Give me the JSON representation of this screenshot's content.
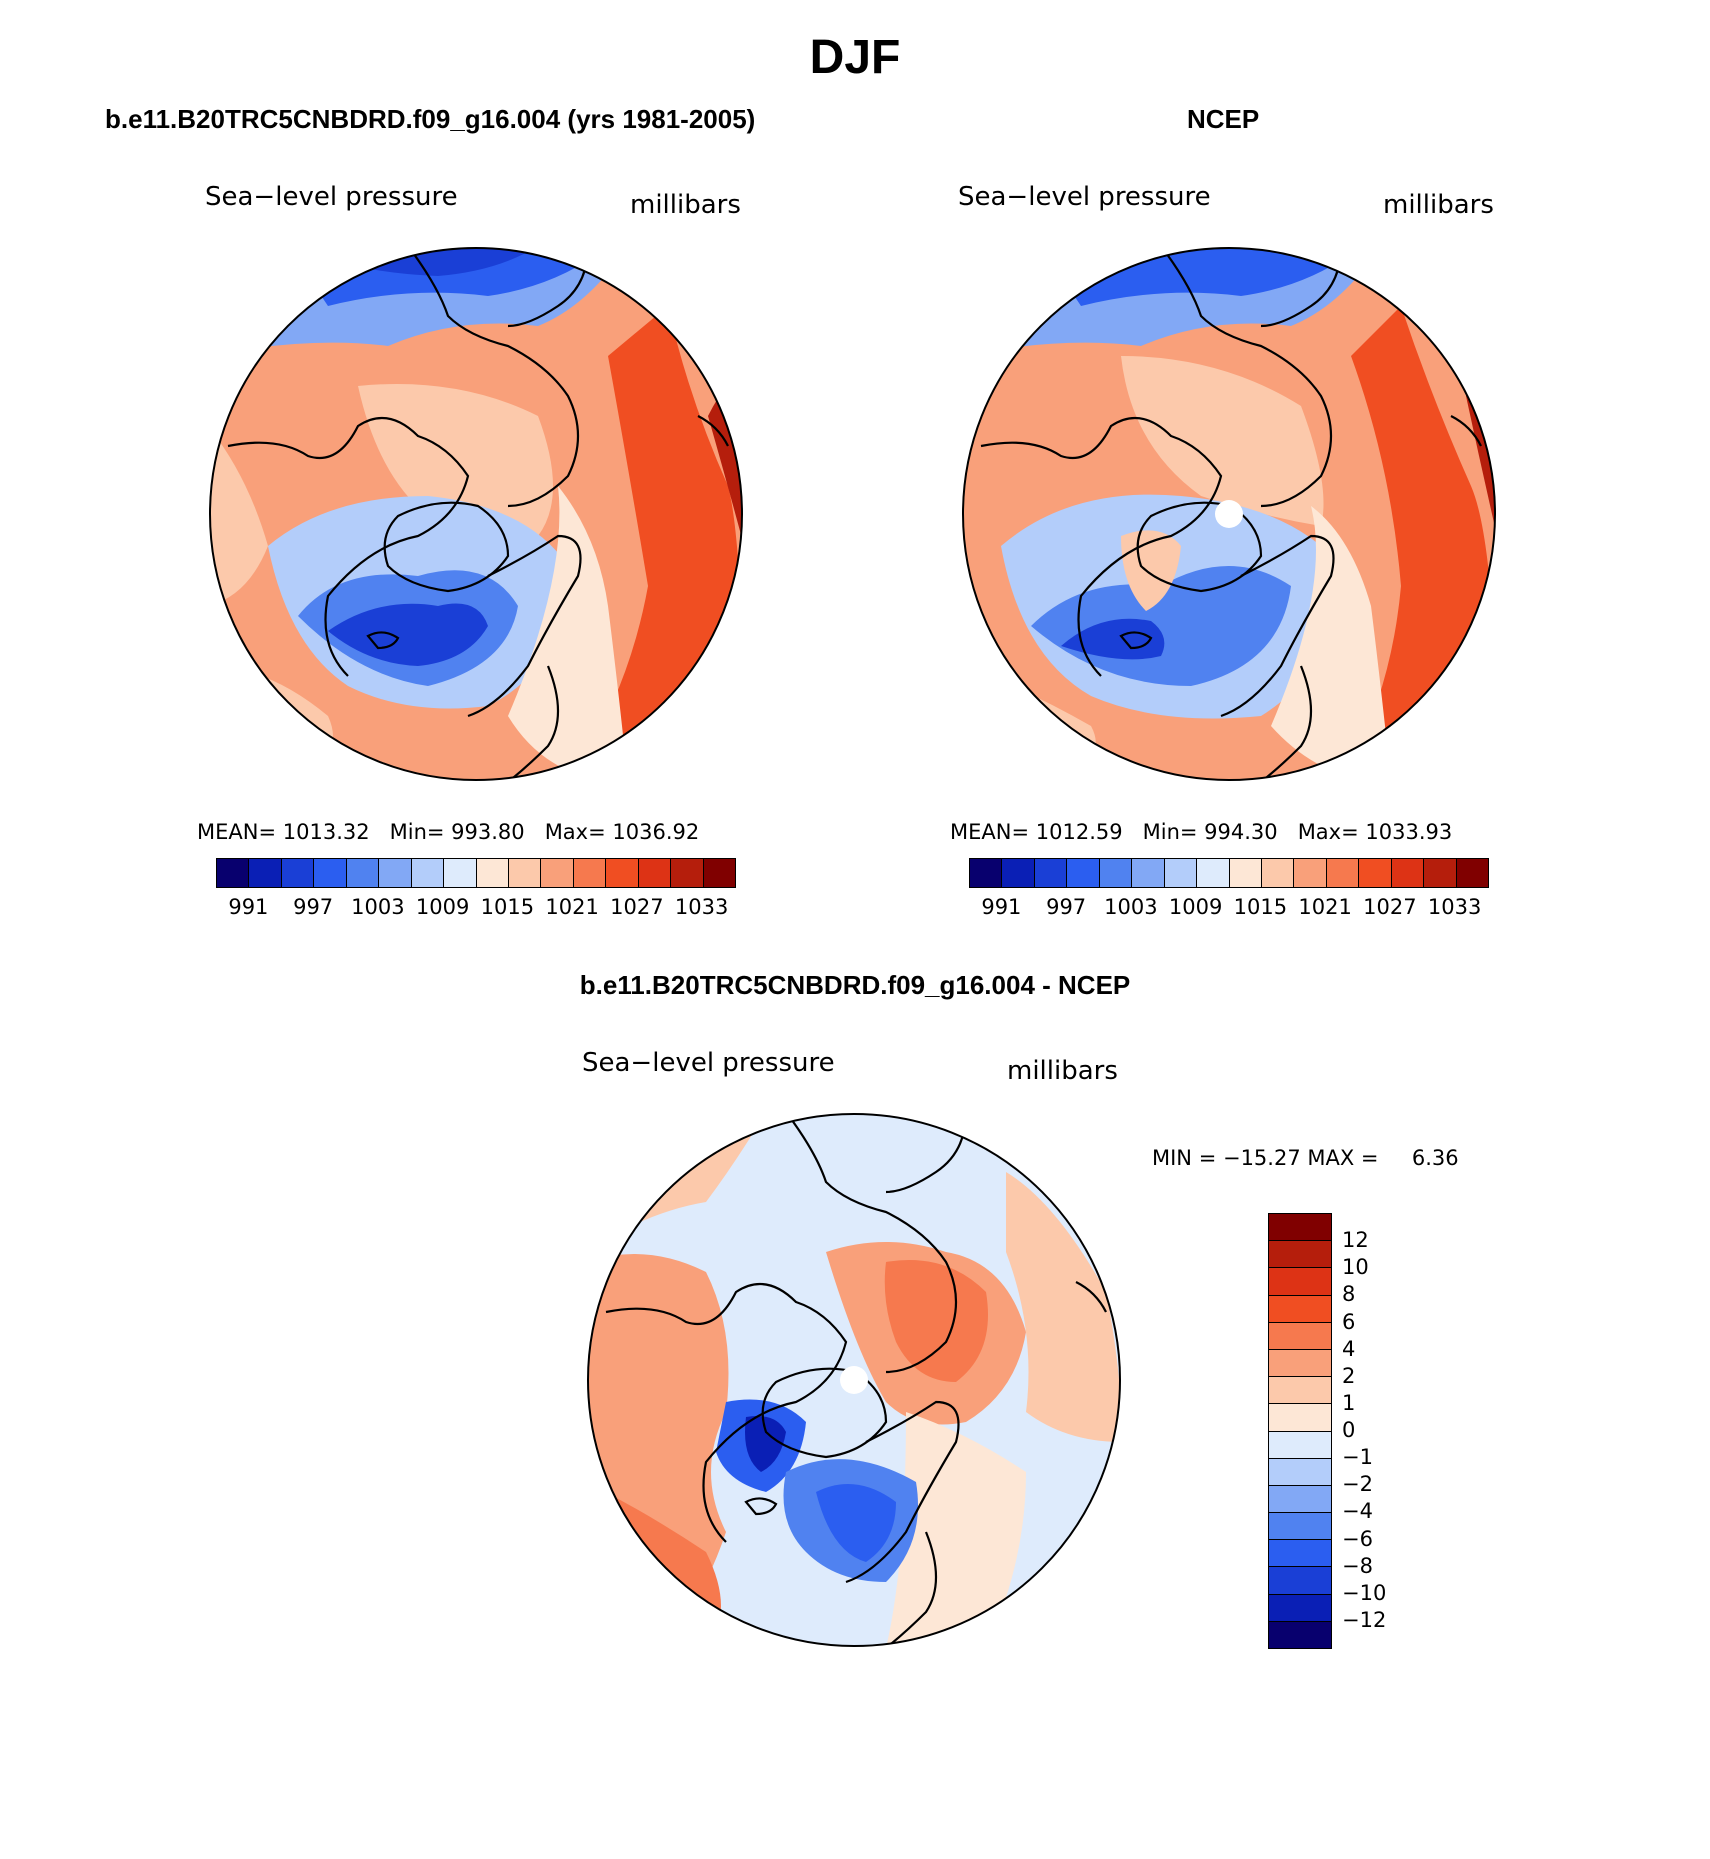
{
  "figure": {
    "title": "DJF"
  },
  "panels": [
    {
      "title": "b.e11.B20TRC5CNBDRD.f09_g16.004 (yrs 1981-2005)",
      "variable_label": "Sea−level pressure",
      "units_label": "millibars",
      "stats": {
        "mean_label": "MEAN=",
        "mean": "1013.32",
        "min_label": "Min=",
        "min": "993.80",
        "max_label": "Max=",
        "max": "1036.92"
      }
    },
    {
      "title": "NCEP",
      "variable_label": "Sea−level pressure",
      "units_label": "millibars",
      "stats": {
        "mean_label": "MEAN=",
        "mean": "1012.59",
        "min_label": "Min=",
        "min": "994.30",
        "max_label": "Max=",
        "max": "1033.93"
      }
    },
    {
      "title": "b.e11.B20TRC5CNBDRD.f09_g16.004 - NCEP",
      "variable_label": "Sea−level pressure",
      "units_label": "millibars",
      "stats_line": "MIN = −15.27 MAX =     6.36"
    }
  ],
  "colorbar_abs": {
    "colors": [
      "#08006e",
      "#0a1fb5",
      "#1a3fd6",
      "#2b5ef0",
      "#5082f0",
      "#82a8f5",
      "#b3cdfa",
      "#deebfc",
      "#fde7d6",
      "#fcc9ab",
      "#f9a07a",
      "#f6794e",
      "#f04e22",
      "#dd3315",
      "#b51e0c",
      "#800000"
    ],
    "tick_labels": [
      "991",
      "997",
      "1003",
      "1009",
      "1015",
      "1021",
      "1027",
      "1033"
    ]
  },
  "colorbar_diff": {
    "colors_top_to_bottom": [
      "#800000",
      "#b51e0c",
      "#dd3315",
      "#f04e22",
      "#f6794e",
      "#f9a07a",
      "#fcc9ab",
      "#fde7d6",
      "#deebfc",
      "#b3cdfa",
      "#82a8f5",
      "#5082f0",
      "#2b5ef0",
      "#1a3fd6",
      "#0a1fb5",
      "#08006e"
    ],
    "tick_labels": [
      "12",
      "10",
      "8",
      "6",
      "4",
      "2",
      "1",
      "0",
      "−1",
      "−2",
      "−4",
      "−6",
      "−8",
      "−10",
      "−12"
    ]
  }
}
